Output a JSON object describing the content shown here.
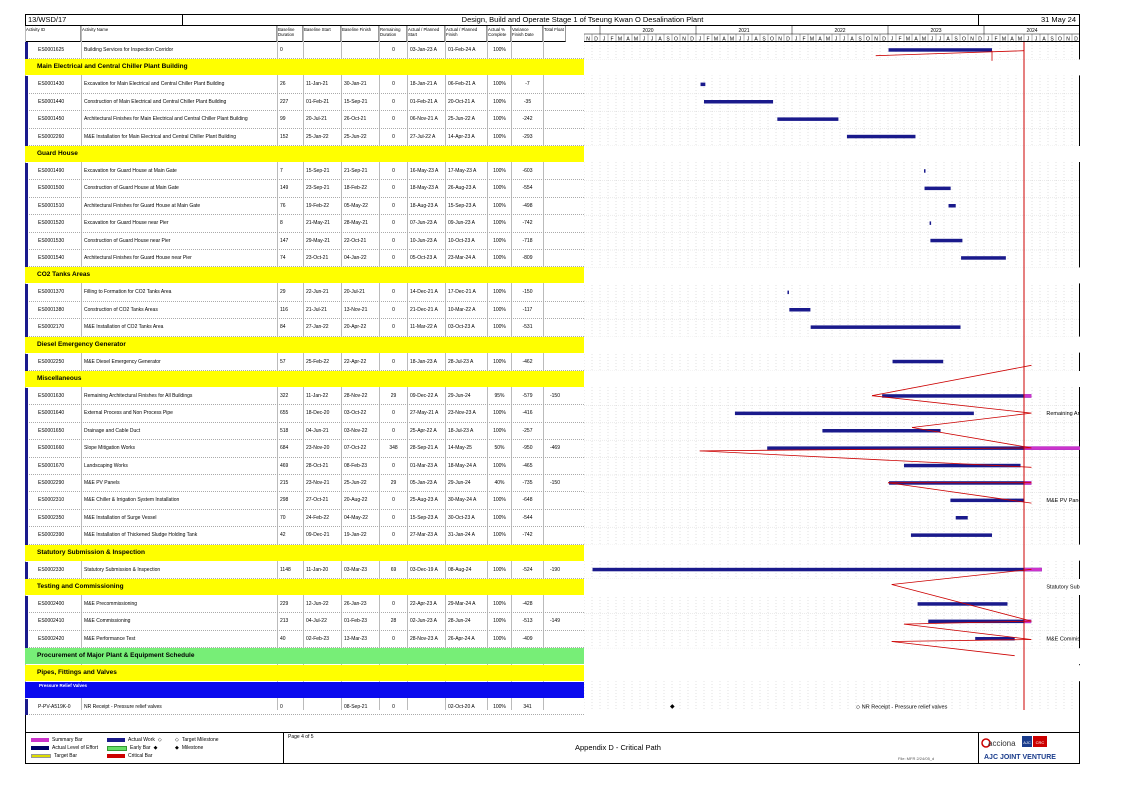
{
  "header": {
    "ref": "13/WSD/17",
    "title": "Design, Build and Operate Stage 1 of Tseung Kwan O Desalination Plant",
    "date": "31 May 24"
  },
  "columns": {
    "activity_id": "Activity ID",
    "activity_name": "Activity Name",
    "baseline_duration": "Baseline Duration",
    "baseline_start": "Baseline Start",
    "baseline_finish": "Baseline Finish",
    "remaining_duration": "Remaining Duration",
    "actual_start": "Actual / Planned Start",
    "actual_finish": "Actual / Planned Finish",
    "actual_pct": "Actual % Complete",
    "variance": "Variance Finish Date",
    "total_float": "Total Float"
  },
  "timeline": {
    "years": [
      "2020",
      "2021",
      "2022",
      "2023",
      "2024"
    ],
    "month_letters": [
      "N",
      "D",
      "J",
      "F",
      "M",
      "A",
      "M",
      "J",
      "J",
      "A",
      "S",
      "O",
      "N",
      "D",
      "J",
      "F",
      "M",
      "A",
      "M",
      "J",
      "J",
      "A",
      "S",
      "O",
      "N",
      "D",
      "J",
      "F",
      "M",
      "A",
      "M",
      "J",
      "J",
      "A",
      "S",
      "O",
      "N",
      "D",
      "J",
      "F",
      "M",
      "A",
      "M",
      "J",
      "J",
      "A",
      "S",
      "O",
      "N",
      "D",
      "J",
      "F",
      "M",
      "A",
      "M",
      "J",
      "J",
      "A",
      "S",
      "O",
      "N",
      "D"
    ]
  },
  "rows": [
    {
      "type": "activity",
      "id": "ES0001625",
      "name": "Building Services for Inspection Corridor",
      "bd": "0",
      "bs": "",
      "bf": "",
      "rd": "0",
      "as": "03-Jan-23 A",
      "af": "01-Feb-24 A",
      "pct": "100%",
      "var": "",
      "tf": ""
    },
    {
      "type": "band",
      "color": "#ffff00",
      "label": "Main Electrical and Central Chiller Plant Building"
    },
    {
      "type": "activity",
      "id": "ES0001430",
      "name": "Excavation for Main Electrical and Central Chiller Plant Building",
      "bd": "26",
      "bs": "11-Jan-21",
      "bf": "30-Jan-21",
      "rd": "0",
      "as": "18-Jan-21 A",
      "af": "06-Feb-21 A",
      "pct": "100%",
      "var": "-7",
      "tf": ""
    },
    {
      "type": "activity",
      "id": "ES0001440",
      "name": "Construction of Main Electrical and Central Chiller Plant Building",
      "bd": "227",
      "bs": "01-Feb-21",
      "bf": "15-Sep-21",
      "rd": "0",
      "as": "01-Feb-21 A",
      "af": "20-Oct-21 A",
      "pct": "100%",
      "var": "-35",
      "tf": ""
    },
    {
      "type": "activity",
      "id": "ES0001450",
      "name": "Architectural Finishes for Main Electrical and Central Chiller Plant Building",
      "bd": "99",
      "bs": "20-Jul-21",
      "bf": "26-Oct-21",
      "rd": "0",
      "as": "06-Nov-21 A",
      "af": "25-Jun-22 A",
      "pct": "100%",
      "var": "-242",
      "tf": ""
    },
    {
      "type": "activity",
      "id": "ES0002260",
      "name": "M&E Installation for Main Electrical and Central Chiller Plant Building",
      "bd": "152",
      "bs": "25-Jan-22",
      "bf": "25-Jun-22",
      "rd": "0",
      "as": "27-Jul-22 A",
      "af": "14-Apr-23 A",
      "pct": "100%",
      "var": "-293",
      "tf": ""
    },
    {
      "type": "band",
      "color": "#ffff00",
      "label": "Guard House"
    },
    {
      "type": "activity",
      "id": "ES0001490",
      "name": "Excavation for Guard House at Main Gate",
      "bd": "7",
      "bs": "15-Sep-21",
      "bf": "21-Sep-21",
      "rd": "0",
      "as": "16-May-23 A",
      "af": "17-May-23 A",
      "pct": "100%",
      "var": "-603",
      "tf": ""
    },
    {
      "type": "activity",
      "id": "ES0001500",
      "name": "Construction of Guard House at Main Gate",
      "bd": "149",
      "bs": "23-Sep-21",
      "bf": "18-Feb-22",
      "rd": "0",
      "as": "18-May-23 A",
      "af": "26-Aug-23 A",
      "pct": "100%",
      "var": "-554",
      "tf": ""
    },
    {
      "type": "activity",
      "id": "ES0001510",
      "name": "Architectural Finishes for Guard House at Main Gate",
      "bd": "76",
      "bs": "19-Feb-22",
      "bf": "05-May-22",
      "rd": "0",
      "as": "18-Aug-23 A",
      "af": "15-Sep-23 A",
      "pct": "100%",
      "var": "-498",
      "tf": ""
    },
    {
      "type": "activity",
      "id": "ES0001520",
      "name": "Excavation for Guard House near Pier",
      "bd": "8",
      "bs": "21-May-21",
      "bf": "28-May-21",
      "rd": "0",
      "as": "07-Jun-23 A",
      "af": "09-Jun-23 A",
      "pct": "100%",
      "var": "-742",
      "tf": ""
    },
    {
      "type": "activity",
      "id": "ES0001530",
      "name": "Construction of Guard House near Pier",
      "bd": "147",
      "bs": "29-May-21",
      "bf": "22-Oct-21",
      "rd": "0",
      "as": "10-Jun-23 A",
      "af": "10-Oct-23 A",
      "pct": "100%",
      "var": "-718",
      "tf": ""
    },
    {
      "type": "activity",
      "id": "ES0001540",
      "name": "Architectural Finishes for Guard House near Pier",
      "bd": "74",
      "bs": "23-Oct-21",
      "bf": "04-Jan-22",
      "rd": "0",
      "as": "05-Oct-23 A",
      "af": "23-Mar-24 A",
      "pct": "100%",
      "var": "-809",
      "tf": ""
    },
    {
      "type": "band",
      "color": "#ffff00",
      "label": "CO2 Tanks Areas"
    },
    {
      "type": "activity",
      "id": "ES0001370",
      "name": "Filling to Formation for CO2 Tanks Area",
      "bd": "29",
      "bs": "22-Jun-21",
      "bf": "20-Jul-21",
      "rd": "0",
      "as": "14-Dec-21 A",
      "af": "17-Dec-21 A",
      "pct": "100%",
      "var": "-150",
      "tf": ""
    },
    {
      "type": "activity",
      "id": "ES0001380",
      "name": "Construction of CO2 Tanks Areas",
      "bd": "116",
      "bs": "21-Jul-21",
      "bf": "13-Nov-21",
      "rd": "0",
      "as": "21-Dec-21 A",
      "af": "10-Mar-22 A",
      "pct": "100%",
      "var": "-117",
      "tf": ""
    },
    {
      "type": "activity",
      "id": "ES0002170",
      "name": "M&E Installation of CO2 Tanks Area",
      "bd": "84",
      "bs": "27-Jan-22",
      "bf": "20-Apr-22",
      "rd": "0",
      "as": "11-Mar-22 A",
      "af": "03-Oct-23 A",
      "pct": "100%",
      "var": "-531",
      "tf": ""
    },
    {
      "type": "band",
      "color": "#ffff00",
      "label": "Diesel Emergency Generator"
    },
    {
      "type": "activity",
      "id": "ES0002250",
      "name": "M&E Diesel Emergency Generator",
      "bd": "57",
      "bs": "25-Feb-22",
      "bf": "22-Apr-22",
      "rd": "0",
      "as": "18-Jan-23 A",
      "af": "28-Jul-23 A",
      "pct": "100%",
      "var": "-462",
      "tf": ""
    },
    {
      "type": "band",
      "color": "#ffff00",
      "label": "Miscellaneous"
    },
    {
      "type": "activity",
      "id": "ES0001630",
      "name": "Remaining Architectural Finishes for All Buildings",
      "bd": "322",
      "bs": "11-Jan-22",
      "bf": "28-Nov-22",
      "rd": "29",
      "as": "09-Dec-22 A",
      "af": "29-Jun-24",
      "pct": "95%",
      "var": "-579",
      "tf": "-150"
    },
    {
      "type": "activity",
      "id": "ES0001640",
      "name": "External Process and Non Process Pipe",
      "bd": "655",
      "bs": "18-Dec-20",
      "bf": "03-Oct-22",
      "rd": "0",
      "as": "27-May-21 A",
      "af": "23-Nov-23 A",
      "pct": "100%",
      "var": "-416",
      "tf": ""
    },
    {
      "type": "activity",
      "id": "ES0001650",
      "name": "Drainage and Cable Duct",
      "bd": "518",
      "bs": "04-Jun-21",
      "bf": "03-Nov-22",
      "rd": "0",
      "as": "25-Apr-22 A",
      "af": "18-Jul-23 A",
      "pct": "100%",
      "var": "-257",
      "tf": ""
    },
    {
      "type": "activity",
      "id": "ES0001660",
      "name": "Slope Mitigation Works",
      "bd": "684",
      "bs": "23-Nov-20",
      "bf": "07-Oct-22",
      "rd": "348",
      "as": "28-Sep-21 A",
      "af": "14-May-25",
      "pct": "50%",
      "var": "-950",
      "tf": "-469"
    },
    {
      "type": "activity",
      "id": "ES0001670",
      "name": "Landscaping Works",
      "bd": "469",
      "bs": "28-Oct-21",
      "bf": "08-Feb-23",
      "rd": "0",
      "as": "01-Mar-23 A",
      "af": "18-May-24 A",
      "pct": "100%",
      "var": "-465",
      "tf": ""
    },
    {
      "type": "activity",
      "id": "ES0002290",
      "name": "M&E PV Panels",
      "bd": "215",
      "bs": "23-Nov-21",
      "bf": "25-Jun-22",
      "rd": "29",
      "as": "05-Jan-23 A",
      "af": "29-Jun-24",
      "pct": "40%",
      "var": "-735",
      "tf": "-150"
    },
    {
      "type": "activity",
      "id": "ES0002310",
      "name": "M&E Chiller & Irrigation System Installation",
      "bd": "298",
      "bs": "27-Oct-21",
      "bf": "20-Aug-22",
      "rd": "0",
      "as": "25-Aug-23 A",
      "af": "30-May-24 A",
      "pct": "100%",
      "var": "-648",
      "tf": ""
    },
    {
      "type": "activity",
      "id": "ES0002350",
      "name": "M&E Installation of Surge Vessel",
      "bd": "70",
      "bs": "24-Feb-22",
      "bf": "04-May-22",
      "rd": "0",
      "as": "15-Sep-23 A",
      "af": "30-Oct-23 A",
      "pct": "100%",
      "var": "-544",
      "tf": ""
    },
    {
      "type": "activity",
      "id": "ES0002390",
      "name": "M&E Installation of Thickened Sludge Holding Tank",
      "bd": "42",
      "bs": "09-Dec-21",
      "bf": "19-Jan-22",
      "rd": "0",
      "as": "27-Mar-23 A",
      "af": "31-Jan-24 A",
      "pct": "100%",
      "var": "-742",
      "tf": ""
    },
    {
      "type": "band",
      "color": "#ffff00",
      "label": "Statutory Submission & Inspection"
    },
    {
      "type": "activity",
      "id": "ES0002330",
      "name": "Statutory Submission & Inspection",
      "bd": "1148",
      "bs": "11-Jan-20",
      "bf": "03-Mar-23",
      "rd": "69",
      "as": "03-Dec-19 A",
      "af": "08-Aug-24",
      "pct": "100%",
      "var": "-524",
      "tf": "-190"
    },
    {
      "type": "band",
      "color": "#ffff00",
      "label": "Testing and Commissioning"
    },
    {
      "type": "activity",
      "id": "ES0002400",
      "name": "M&E Precommissioning",
      "bd": "229",
      "bs": "12-Jun-22",
      "bf": "26-Jan-23",
      "rd": "0",
      "as": "22-Apr-23 A",
      "af": "29-Mar-24 A",
      "pct": "100%",
      "var": "-428",
      "tf": ""
    },
    {
      "type": "activity",
      "id": "ES0002410",
      "name": "M&E Commissioning",
      "bd": "213",
      "bs": "04-Jul-22",
      "bf": "01-Feb-23",
      "rd": "28",
      "as": "02-Jun-23 A",
      "af": "28-Jun-24",
      "pct": "100%",
      "var": "-513",
      "tf": "-149"
    },
    {
      "type": "activity",
      "id": "ES0002420",
      "name": "M&E Performance Test",
      "bd": "40",
      "bs": "02-Feb-23",
      "bf": "13-Mar-23",
      "rd": "0",
      "as": "28-Nov-23 A",
      "af": "26-Apr-24 A",
      "pct": "100%",
      "var": "-409",
      "tf": ""
    },
    {
      "type": "band",
      "color": "#77ee77",
      "label": "Procurement of Major Plant & Equipment Schedule"
    },
    {
      "type": "band",
      "color": "#ffff00",
      "label": "Pipes, Fittings and Valves"
    },
    {
      "type": "band",
      "color": "#0a0aee",
      "label": "Pressure Relief Valves",
      "small": true
    },
    {
      "type": "activity",
      "id": "P-PV-A519K-0",
      "name": "NR Receipt - Pressure relief valves",
      "bd": "0",
      "bs": "",
      "bf": "08-Sep-21",
      "rd": "0",
      "as": "",
      "af": "02-Oct-20 A",
      "pct": "100%",
      "var": "341",
      "tf": ""
    }
  ],
  "gantt_labels": {
    "remaining_arch": "Remaining Archit",
    "pv_panels": "M&E PV Panels",
    "statutory": "Statutory Sub",
    "commissioning": "M&E Commissio",
    "nr_receipt": "NR Receipt - Pressure relief valves"
  },
  "legend": {
    "summary_bar": "Summary Bar",
    "actual_work": "Actual Work",
    "target_milestone": "Target Milestone",
    "actual_loe": "Actual Level of Effort",
    "early_bar": "Early Bar",
    "milestone": "Milestone",
    "target_bar": "Target Bar",
    "critical_bar": "Critical Bar",
    "colors": {
      "summary": "#cc33cc",
      "actual": "#1a1a8c",
      "loe": "#000066",
      "early": "#66dd66",
      "target": "#dddd00",
      "critical": "#cc0000"
    }
  },
  "footer": {
    "page": "Page 4 of 5",
    "title": "Appendix D - Critical Path",
    "file": "File: MFR 2/24/05_d",
    "brand": "acciona",
    "brand2": "AJC JOINT VENTURE"
  }
}
